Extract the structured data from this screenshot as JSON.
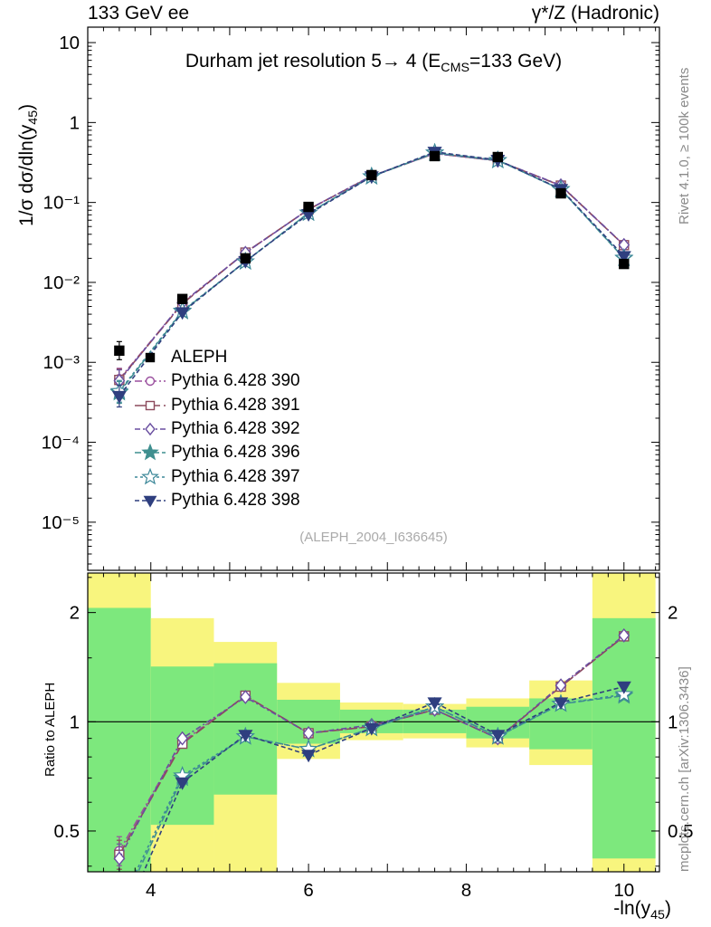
{
  "header": {
    "left": "133 GeV ee",
    "right": "γ*/Z (Hadronic)"
  },
  "title": {
    "part1": "Durham jet resolution 5→ 4 (E",
    "sub": "CMS",
    "part2": "=133 GeV)"
  },
  "axes_labels": {
    "main_y": {
      "part1": "1/σ  dσ/dln(y",
      "sub": "45",
      "part2": ")"
    },
    "x": {
      "part1": "-ln(y",
      "sub": "45",
      "part2": ")"
    },
    "ratio_y": "Ratio to ALEPH"
  },
  "side_notes": {
    "top_right": "Rivet 4.1.0, ≥ 100k events",
    "bottom_right": "mcplots.cern.ch [arXiv:1306.3436]"
  },
  "watermark": "(ALEPH_2004_I636645)",
  "chart_data": {
    "type": "line",
    "title": "Durham jet resolution 5→ 4 (E_CMS=133 GeV)",
    "xlabel": "-ln(y_45)",
    "ylabel_main": "1/σ dσ/dln(y_45)",
    "ylabel_ratio": "Ratio to ALEPH",
    "x": [
      3.6,
      4.4,
      5.2,
      6.0,
      6.8,
      7.6,
      8.4,
      9.2,
      10.0
    ],
    "xlim": [
      3.2,
      10.45
    ],
    "main_yscale": "log",
    "main_ylim": [
      2.5e-06,
      15.6
    ],
    "ratio_yscale": "log",
    "ratio_ylim": [
      0.386,
      2.57
    ],
    "x_ticks": [
      4,
      6,
      8,
      10
    ],
    "main_y_ticks": [
      {
        "v": 10,
        "label": "10"
      },
      {
        "v": 1,
        "label": "1"
      },
      {
        "v": 0.1,
        "label": "10⁻¹"
      },
      {
        "v": 0.01,
        "label": "10⁻²"
      },
      {
        "v": 0.001,
        "label": "10⁻³"
      },
      {
        "v": 0.0001,
        "label": "10⁻⁴"
      },
      {
        "v": 1e-05,
        "label": "10⁻⁵"
      }
    ],
    "ratio_y_ticks": [
      {
        "v": 2,
        "label": "2"
      },
      {
        "v": 1,
        "label": "1"
      },
      {
        "v": 0.5,
        "label": "0.5"
      }
    ],
    "ratio_reference": 1,
    "series": [
      {
        "name": "ALEPH",
        "color": "#000000",
        "marker": "square",
        "filled": true,
        "values": [
          0.0014,
          0.0062,
          0.02,
          0.088,
          0.22,
          0.38,
          0.37,
          0.13,
          0.017
        ]
      },
      {
        "name": "Pythia 6.428 390",
        "color": "#9a4f9e",
        "marker": "circle",
        "filled": false,
        "dash": [
          8,
          3,
          2,
          3
        ],
        "ratio": [
          0.44,
          0.88,
          1.18,
          0.93,
          0.97,
          1.08,
          0.9,
          1.25,
          1.72
        ]
      },
      {
        "name": "Pythia 6.428 391",
        "color": "#8c4a5c",
        "marker": "square",
        "filled": false,
        "dash": [
          12,
          4
        ],
        "ratio": [
          0.43,
          0.87,
          1.18,
          0.93,
          0.97,
          1.08,
          0.9,
          1.25,
          1.72
        ]
      },
      {
        "name": "Pythia 6.428 392",
        "color": "#6a4fa0",
        "marker": "diamond",
        "filled": false,
        "dash": [
          6,
          3,
          2,
          3
        ],
        "ratio": [
          0.42,
          0.9,
          1.17,
          0.93,
          0.98,
          1.08,
          0.9,
          1.26,
          1.73
        ]
      },
      {
        "name": "Pythia 6.428 396",
        "color": "#3f8f8f",
        "marker": "star",
        "filled": true,
        "dash": [
          7,
          3
        ],
        "ratio": [
          0.3,
          0.7,
          0.91,
          0.84,
          0.96,
          1.1,
          0.91,
          1.12,
          1.18
        ]
      },
      {
        "name": "Pythia 6.428 397",
        "color": "#3d8899",
        "marker": "star",
        "filled": false,
        "dash": [
          3,
          3
        ],
        "ratio": [
          0.31,
          0.71,
          0.91,
          0.84,
          0.96,
          1.1,
          0.91,
          1.12,
          1.19
        ]
      },
      {
        "name": "Pythia 6.428 398",
        "color": "#2f3f7f",
        "marker": "triangle-down",
        "filled": true,
        "dash": [
          5,
          3
        ],
        "ratio": [
          0.27,
          0.68,
          0.92,
          0.81,
          0.96,
          1.13,
          0.92,
          1.13,
          1.25
        ]
      }
    ],
    "bands": {
      "edges": [
        3.2,
        4.0,
        4.8,
        5.6,
        6.4,
        7.2,
        8.0,
        8.8,
        9.6,
        10.4
      ],
      "yellow": [
        [
          0.386,
          2.57
        ],
        [
          0.386,
          1.93
        ],
        [
          0.386,
          1.66
        ],
        [
          0.79,
          1.28
        ],
        [
          0.89,
          1.13
        ],
        [
          0.9,
          1.12
        ],
        [
          0.85,
          1.16
        ],
        [
          0.76,
          1.3
        ],
        [
          0.386,
          2.57
        ]
      ],
      "green": [
        [
          0.386,
          2.06
        ],
        [
          0.52,
          1.42
        ],
        [
          0.63,
          1.45
        ],
        [
          0.87,
          1.15
        ],
        [
          0.93,
          1.08
        ],
        [
          0.93,
          1.08
        ],
        [
          0.9,
          1.1
        ],
        [
          0.84,
          1.16
        ],
        [
          0.42,
          1.93
        ]
      ],
      "colors": {
        "yellow": "#f8f57e",
        "green": "#7de87d"
      }
    }
  }
}
